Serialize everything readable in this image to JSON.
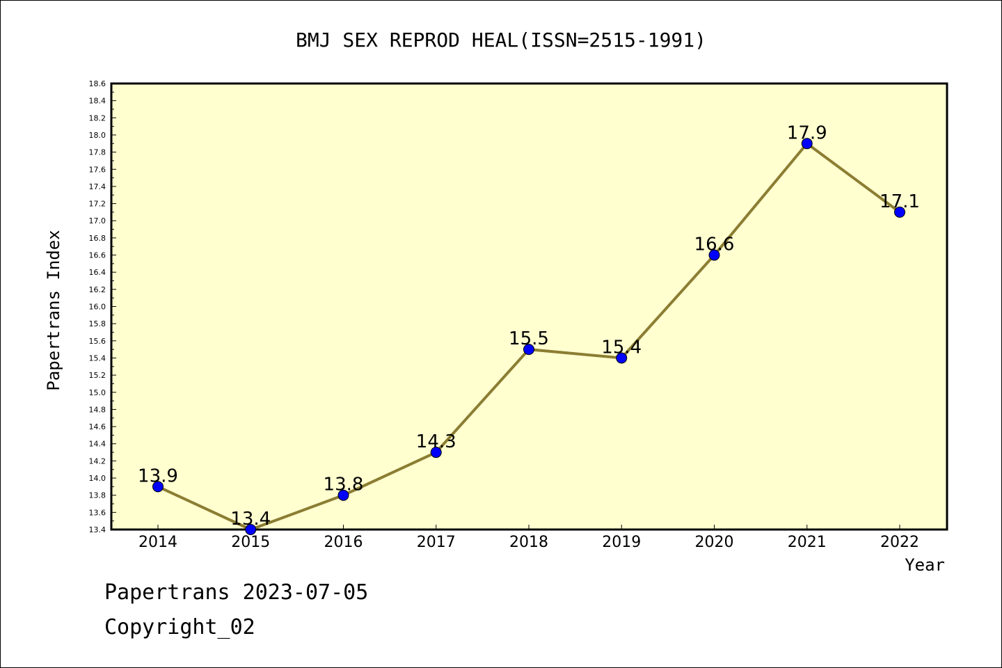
{
  "chart_data": {
    "type": "line",
    "title": "BMJ SEX REPROD HEAL(ISSN=2515-1991)",
    "xlabel": "Year",
    "ylabel": "Papertrans Index",
    "categories": [
      "2014",
      "2015",
      "2016",
      "2017",
      "2018",
      "2019",
      "2020",
      "2021",
      "2022"
    ],
    "series": [
      {
        "values": [
          13.9,
          13.4,
          13.8,
          14.3,
          15.5,
          15.4,
          16.6,
          17.9,
          17.1
        ],
        "labels": [
          "13.9",
          "13.4",
          "13.8",
          "14.3",
          "15.5",
          "15.4",
          "16.6",
          "17.9",
          "17.1"
        ]
      }
    ],
    "ylim": [
      13.4,
      18.6
    ],
    "yticks": [
      "13.4",
      "13.6",
      "13.8",
      "14.0",
      "14.2",
      "14.4",
      "14.6",
      "14.8",
      "15.0",
      "15.2",
      "15.4",
      "15.6",
      "15.8",
      "16.0",
      "16.2",
      "16.4",
      "16.6",
      "16.8",
      "17.0",
      "17.2",
      "17.4",
      "17.6",
      "17.8",
      "18.0",
      "18.2",
      "18.4",
      "18.6"
    ],
    "grid": false,
    "colors": {
      "plot_background": "#ffffd0",
      "line": "#8b7d32",
      "marker": "#0000ff"
    }
  },
  "footer": {
    "line1": "Papertrans 2023-07-05",
    "line2": "Copyright_02"
  }
}
